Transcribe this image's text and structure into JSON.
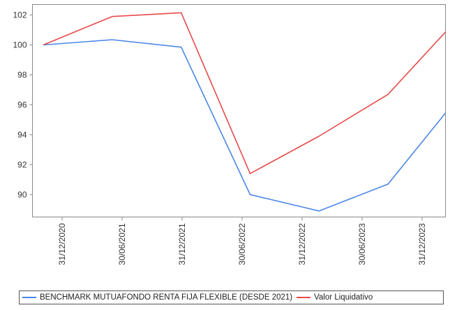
{
  "chart_data": {
    "type": "line",
    "title": "",
    "xlabel": "",
    "ylabel": "",
    "categories": [
      "31/12/2020",
      "30/06/2021",
      "31/12/2021",
      "30/06/2022",
      "31/12/2022",
      "30/06/2023",
      "31/12/2023"
    ],
    "x": [
      "31/12/2020",
      "30/06/2021",
      "31/12/2021",
      "30/06/2022",
      "31/12/2022",
      "30/06/2023",
      "31/12/2023"
    ],
    "ylim": [
      88.5,
      102.7
    ],
    "yticks": [
      90,
      92,
      94,
      96,
      98,
      100,
      102
    ],
    "grid": false,
    "legend_position": "bottom",
    "series": [
      {
        "name": "BENCHMARK MUTUAFONDO RENTA FIJA FLEXIBLE (DESDE 2021)",
        "color": "#4a86e8",
        "points": [
          {
            "x": "31/12/2020",
            "y": 100.0
          },
          {
            "x": "30/06/2021",
            "y": 100.35
          },
          {
            "x": "31/12/2021",
            "y": 99.85
          },
          {
            "x": "30/06/2022",
            "y": 90.0
          },
          {
            "x": "31/12/2022",
            "y": 88.9
          },
          {
            "x": "30/06/2023",
            "y": 90.7
          },
          {
            "x": "31/12/2023",
            "y": 96.4
          }
        ]
      },
      {
        "name": "Valor Liquidativo",
        "color": "#e84a4a",
        "points": [
          {
            "x": "31/12/2020",
            "y": 100.0
          },
          {
            "x": "30/06/2021",
            "y": 101.9
          },
          {
            "x": "31/12/2021",
            "y": 102.15
          },
          {
            "x": "30/06/2022",
            "y": 91.4
          },
          {
            "x": "31/12/2022",
            "y": 93.9
          },
          {
            "x": "30/06/2023",
            "y": 96.7
          },
          {
            "x": "31/12/2023",
            "y": 101.7
          }
        ]
      }
    ]
  }
}
